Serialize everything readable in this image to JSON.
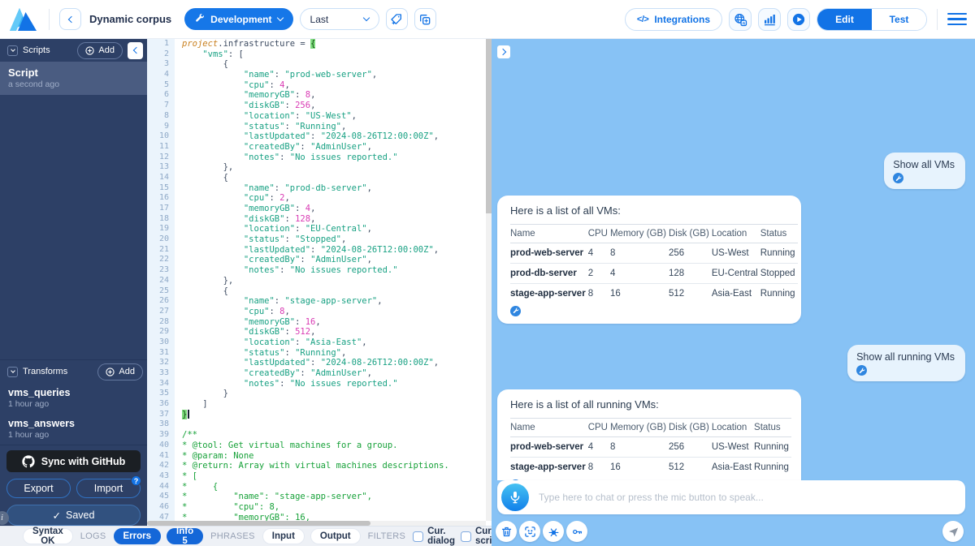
{
  "toolbar": {
    "app_title": "Dynamic corpus",
    "env_button": "Development",
    "version_select": "Last",
    "integrations_glyph": "</>",
    "integrations_button": "Integrations",
    "edit_button": "Edit",
    "test_button": "Test"
  },
  "sidebar": {
    "scripts_header": "Scripts",
    "add_button": "Add",
    "scripts": [
      {
        "name": "Script",
        "time": "a second ago",
        "selected": true
      }
    ],
    "transforms_header": "Transforms",
    "transforms": [
      {
        "name": "vms_queries",
        "time": "1 hour ago"
      },
      {
        "name": "vms_answers",
        "time": "1 hour ago"
      }
    ],
    "github_button": "Sync with GitHub",
    "export_button": "Export",
    "import_button": "Import",
    "import_badge": "?",
    "saved_button": "Saved",
    "saved_check": "✓",
    "info_glyph": "i"
  },
  "editor": {
    "cursor_after_line": 37,
    "lines": [
      [
        [
          "o",
          "project"
        ],
        [
          "p",
          ".infrastructure = "
        ],
        [
          "b",
          "{"
        ]
      ],
      [
        [
          "p",
          "    "
        ],
        [
          "t",
          "\"vms\""
        ],
        [
          "p",
          ": ["
        ]
      ],
      [
        [
          "p",
          "        {"
        ]
      ],
      [
        [
          "p",
          "            "
        ],
        [
          "t",
          "\"name\""
        ],
        [
          "p",
          ": "
        ],
        [
          "t",
          "\"prod-web-server\""
        ],
        [
          "p",
          ","
        ]
      ],
      [
        [
          "p",
          "            "
        ],
        [
          "t",
          "\"cpu\""
        ],
        [
          "p",
          ": "
        ],
        [
          "n",
          "4"
        ],
        [
          "p",
          ","
        ]
      ],
      [
        [
          "p",
          "            "
        ],
        [
          "t",
          "\"memoryGB\""
        ],
        [
          "p",
          ": "
        ],
        [
          "n",
          "8"
        ],
        [
          "p",
          ","
        ]
      ],
      [
        [
          "p",
          "            "
        ],
        [
          "t",
          "\"diskGB\""
        ],
        [
          "p",
          ": "
        ],
        [
          "n",
          "256"
        ],
        [
          "p",
          ","
        ]
      ],
      [
        [
          "p",
          "            "
        ],
        [
          "t",
          "\"location\""
        ],
        [
          "p",
          ": "
        ],
        [
          "t",
          "\"US-West\""
        ],
        [
          "p",
          ","
        ]
      ],
      [
        [
          "p",
          "            "
        ],
        [
          "t",
          "\"status\""
        ],
        [
          "p",
          ": "
        ],
        [
          "t",
          "\"Running\""
        ],
        [
          "p",
          ","
        ]
      ],
      [
        [
          "p",
          "            "
        ],
        [
          "t",
          "\"lastUpdated\""
        ],
        [
          "p",
          ": "
        ],
        [
          "t",
          "\"2024-08-26T12:00:00Z\""
        ],
        [
          "p",
          ","
        ]
      ],
      [
        [
          "p",
          "            "
        ],
        [
          "t",
          "\"createdBy\""
        ],
        [
          "p",
          ": "
        ],
        [
          "t",
          "\"AdminUser\""
        ],
        [
          "p",
          ","
        ]
      ],
      [
        [
          "p",
          "            "
        ],
        [
          "t",
          "\"notes\""
        ],
        [
          "p",
          ": "
        ],
        [
          "t",
          "\"No issues reported.\""
        ]
      ],
      [
        [
          "p",
          "        },"
        ]
      ],
      [
        [
          "p",
          "        {"
        ]
      ],
      [
        [
          "p",
          "            "
        ],
        [
          "t",
          "\"name\""
        ],
        [
          "p",
          ": "
        ],
        [
          "t",
          "\"prod-db-server\""
        ],
        [
          "p",
          ","
        ]
      ],
      [
        [
          "p",
          "            "
        ],
        [
          "t",
          "\"cpu\""
        ],
        [
          "p",
          ": "
        ],
        [
          "n",
          "2"
        ],
        [
          "p",
          ","
        ]
      ],
      [
        [
          "p",
          "            "
        ],
        [
          "t",
          "\"memoryGB\""
        ],
        [
          "p",
          ": "
        ],
        [
          "n",
          "4"
        ],
        [
          "p",
          ","
        ]
      ],
      [
        [
          "p",
          "            "
        ],
        [
          "t",
          "\"diskGB\""
        ],
        [
          "p",
          ": "
        ],
        [
          "n",
          "128"
        ],
        [
          "p",
          ","
        ]
      ],
      [
        [
          "p",
          "            "
        ],
        [
          "t",
          "\"location\""
        ],
        [
          "p",
          ": "
        ],
        [
          "t",
          "\"EU-Central\""
        ],
        [
          "p",
          ","
        ]
      ],
      [
        [
          "p",
          "            "
        ],
        [
          "t",
          "\"status\""
        ],
        [
          "p",
          ": "
        ],
        [
          "t",
          "\"Stopped\""
        ],
        [
          "p",
          ","
        ]
      ],
      [
        [
          "p",
          "            "
        ],
        [
          "t",
          "\"lastUpdated\""
        ],
        [
          "p",
          ": "
        ],
        [
          "t",
          "\"2024-08-26T12:00:00Z\""
        ],
        [
          "p",
          ","
        ]
      ],
      [
        [
          "p",
          "            "
        ],
        [
          "t",
          "\"createdBy\""
        ],
        [
          "p",
          ": "
        ],
        [
          "t",
          "\"AdminUser\""
        ],
        [
          "p",
          ","
        ]
      ],
      [
        [
          "p",
          "            "
        ],
        [
          "t",
          "\"notes\""
        ],
        [
          "p",
          ": "
        ],
        [
          "t",
          "\"No issues reported.\""
        ]
      ],
      [
        [
          "p",
          "        },"
        ]
      ],
      [
        [
          "p",
          "        {"
        ]
      ],
      [
        [
          "p",
          "            "
        ],
        [
          "t",
          "\"name\""
        ],
        [
          "p",
          ": "
        ],
        [
          "t",
          "\"stage-app-server\""
        ],
        [
          "p",
          ","
        ]
      ],
      [
        [
          "p",
          "            "
        ],
        [
          "t",
          "\"cpu\""
        ],
        [
          "p",
          ": "
        ],
        [
          "n",
          "8"
        ],
        [
          "p",
          ","
        ]
      ],
      [
        [
          "p",
          "            "
        ],
        [
          "t",
          "\"memoryGB\""
        ],
        [
          "p",
          ": "
        ],
        [
          "n",
          "16"
        ],
        [
          "p",
          ","
        ]
      ],
      [
        [
          "p",
          "            "
        ],
        [
          "t",
          "\"diskGB\""
        ],
        [
          "p",
          ": "
        ],
        [
          "n",
          "512"
        ],
        [
          "p",
          ","
        ]
      ],
      [
        [
          "p",
          "            "
        ],
        [
          "t",
          "\"location\""
        ],
        [
          "p",
          ": "
        ],
        [
          "t",
          "\"Asia-East\""
        ],
        [
          "p",
          ","
        ]
      ],
      [
        [
          "p",
          "            "
        ],
        [
          "t",
          "\"status\""
        ],
        [
          "p",
          ": "
        ],
        [
          "t",
          "\"Running\""
        ],
        [
          "p",
          ","
        ]
      ],
      [
        [
          "p",
          "            "
        ],
        [
          "t",
          "\"lastUpdated\""
        ],
        [
          "p",
          ": "
        ],
        [
          "t",
          "\"2024-08-26T12:00:00Z\""
        ],
        [
          "p",
          ","
        ]
      ],
      [
        [
          "p",
          "            "
        ],
        [
          "t",
          "\"createdBy\""
        ],
        [
          "p",
          ": "
        ],
        [
          "t",
          "\"AdminUser\""
        ],
        [
          "p",
          ","
        ]
      ],
      [
        [
          "p",
          "            "
        ],
        [
          "t",
          "\"notes\""
        ],
        [
          "p",
          ": "
        ],
        [
          "t",
          "\"No issues reported.\""
        ]
      ],
      [
        [
          "p",
          "        }"
        ]
      ],
      [
        [
          "p",
          "    ]"
        ]
      ],
      [
        [
          "b",
          "}"
        ]
      ],
      [],
      [
        [
          "c",
          "/**"
        ]
      ],
      [
        [
          "c",
          "* @tool: Get virtual machines for a group."
        ]
      ],
      [
        [
          "c",
          "* @param: None"
        ]
      ],
      [
        [
          "c",
          "* @return: Array with virtual machines descriptions."
        ]
      ],
      [
        [
          "c",
          "* ["
        ]
      ],
      [
        [
          "c",
          "*     {"
        ]
      ],
      [
        [
          "c",
          "*         \"name\": \"stage-app-server\","
        ]
      ],
      [
        [
          "c",
          "*         \"cpu\": 8,"
        ]
      ],
      [
        [
          "c",
          "*         \"memoryGB\": 16,"
        ]
      ]
    ]
  },
  "chat": {
    "placeholder": "Type here to chat or press the mic button to speak...",
    "messages": [
      {
        "role": "user",
        "text": "Show all VMs"
      },
      {
        "role": "assistant",
        "intro": "Here is a list of all VMs:",
        "table": {
          "columns": [
            "Name",
            "CPU",
            "Memory (GB)",
            "Disk (GB)",
            "Location",
            "Status"
          ],
          "rows": [
            [
              "prod-web-server",
              "4",
              "8",
              "256",
              "US-West",
              "Running"
            ],
            [
              "prod-db-server",
              "2",
              "4",
              "128",
              "EU-Central",
              "Stopped"
            ],
            [
              "stage-app-server",
              "8",
              "16",
              "512",
              "Asia-East",
              "Running"
            ]
          ]
        }
      },
      {
        "role": "user",
        "text": "Show all running VMs"
      },
      {
        "role": "assistant",
        "intro": "Here is a list of all running VMs:",
        "table": {
          "columns": [
            "Name",
            "CPU",
            "Memory (GB)",
            "Disk (GB)",
            "Location",
            "Status"
          ],
          "rows": [
            [
              "prod-web-server",
              "4",
              "8",
              "256",
              "US-West",
              "Running"
            ],
            [
              "stage-app-server",
              "8",
              "16",
              "512",
              "Asia-East",
              "Running"
            ]
          ]
        }
      }
    ]
  },
  "statusbar": {
    "syntax": "Syntax OK",
    "logs_label": "LOGS",
    "errors_button": "Errors",
    "info_button": "Info 5",
    "phrases_label": "PHRASES",
    "input_button": "Input",
    "output_button": "Output",
    "filters_label": "FILTERS",
    "cur_dialog": "Cur. dialog",
    "cur_script": "Cur. script"
  },
  "colors": {
    "accent": "#1273e6",
    "sidebar_bg": "#2d4066",
    "sidebar_selected": "#4a5c81",
    "chat_panel_bg": "#87c2f5",
    "user_bubble_bg": "#e7f3fd",
    "status_pill_blue": "#1467d8",
    "code_key_string": "#18a183",
    "code_number": "#d93bb4",
    "code_comment": "#16a138",
    "code_keyword": "#c87f1e"
  },
  "icons": {
    "toolbar": [
      "back-chevron",
      "wrench",
      "dropdown-chevron",
      "tag-add",
      "duplicate",
      "code-brackets",
      "globe-translate",
      "bar-chart",
      "play",
      "hamburger-menu"
    ],
    "sidebar": [
      "section-chevron",
      "plus-circle",
      "collapse-chevron",
      "github-logo",
      "checkmark",
      "info"
    ],
    "chat": [
      "expand-chevron",
      "wrench-tool-badge",
      "microphone",
      "trash",
      "face-scan",
      "bug",
      "key",
      "paper-plane"
    ],
    "statusbar": [
      "checkbox",
      "chat-download",
      "file-download"
    ]
  }
}
